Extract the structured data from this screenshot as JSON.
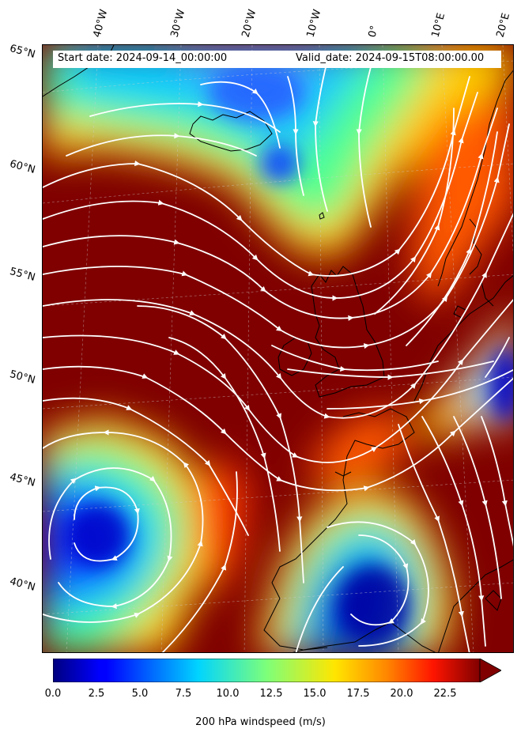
{
  "header": {
    "start_date": "Start date: 2024-09-14_00:00:00",
    "valid_date": "Valid_date: 2024-09-15T08:00:00.00"
  },
  "lon_labels": [
    "40°W",
    "30°W",
    "20°W",
    "10°W",
    "0°",
    "10°E",
    "20°E"
  ],
  "lat_labels": [
    "65°N",
    "60°N",
    "55°N",
    "50°N",
    "45°N",
    "40°N"
  ],
  "colorbar": {
    "label": "200 hPa windspeed (m/s)",
    "ticks": [
      "0.0",
      "2.5",
      "5.0",
      "7.5",
      "10.0",
      "12.5",
      "15.0",
      "17.5",
      "20.0",
      "22.5"
    ],
    "min": 0,
    "max": 25,
    "extend": "max",
    "colormap": "jet"
  },
  "colors": {
    "strong_jet": "#800000",
    "calm": "#0000c8",
    "streamline": "#ffffff",
    "coastline": "#000000"
  }
}
